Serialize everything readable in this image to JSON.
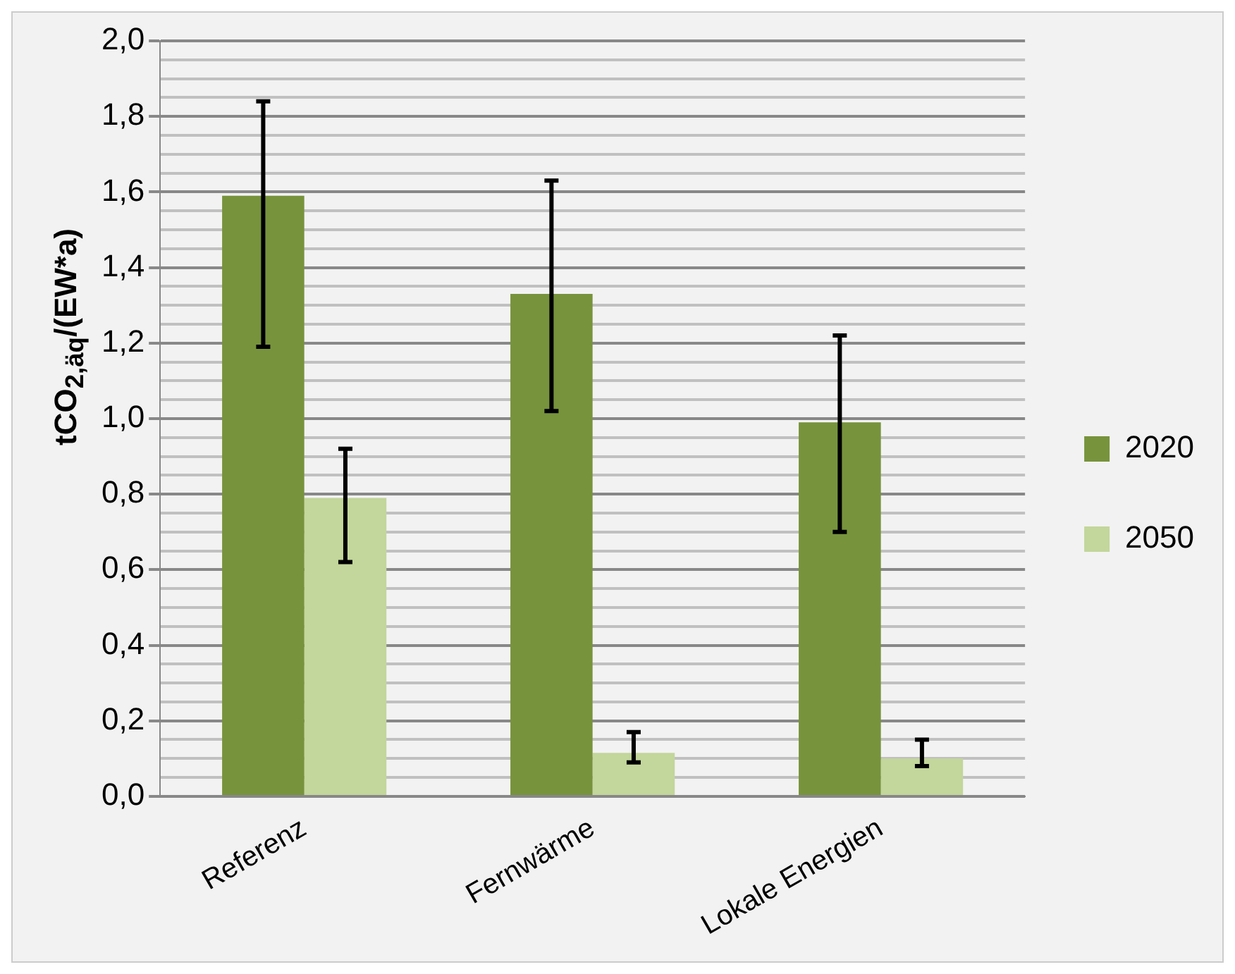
{
  "chart_data": {
    "type": "bar",
    "ylabel": "tCO$_{2,äq}$/(EW*a)",
    "categories": [
      "Referenz",
      "Fernwärme",
      "Lokale Energien"
    ],
    "series": [
      {
        "name": "2020",
        "color": "#77933c",
        "values": [
          1.59,
          1.33,
          0.99
        ],
        "errors": [
          [
            1.19,
            1.84
          ],
          [
            1.02,
            1.63
          ],
          [
            0.7,
            1.22
          ]
        ]
      },
      {
        "name": "2050",
        "color": "#c3d69b",
        "values": [
          0.79,
          0.115,
          0.1
        ],
        "errors": [
          [
            0.62,
            0.92
          ],
          [
            0.09,
            0.17
          ],
          [
            0.08,
            0.15
          ]
        ]
      }
    ],
    "ylim": [
      0,
      2
    ],
    "yticks": [
      {
        "value": 0,
        "label": "0,0"
      },
      {
        "value": 0.05,
        "label": null
      },
      {
        "value": 0.1,
        "label": null
      },
      {
        "value": 0.15,
        "label": null
      },
      {
        "value": 0.2,
        "label": "0,2"
      },
      {
        "value": 0.25,
        "label": null
      },
      {
        "value": 0.3,
        "label": null
      },
      {
        "value": 0.35,
        "label": null
      },
      {
        "value": 0.4,
        "label": "0,4"
      },
      {
        "value": 0.45,
        "label": null
      },
      {
        "value": 0.5,
        "label": null
      },
      {
        "value": 0.55,
        "label": null
      },
      {
        "value": 0.6,
        "label": "0,6"
      },
      {
        "value": 0.65,
        "label": null
      },
      {
        "value": 0.7,
        "label": null
      },
      {
        "value": 0.75,
        "label": null
      },
      {
        "value": 0.8,
        "label": "0,8"
      },
      {
        "value": 0.85,
        "label": null
      },
      {
        "value": 0.9,
        "label": null
      },
      {
        "value": 0.95,
        "label": null
      },
      {
        "value": 1.0,
        "label": "1,0"
      },
      {
        "value": 1.05,
        "label": null
      },
      {
        "value": 1.1,
        "label": null
      },
      {
        "value": 1.15,
        "label": null
      },
      {
        "value": 1.2,
        "label": "1,2"
      },
      {
        "value": 1.25,
        "label": null
      },
      {
        "value": 1.3,
        "label": null
      },
      {
        "value": 1.35,
        "label": null
      },
      {
        "value": 1.4,
        "label": "1,4"
      },
      {
        "value": 1.45,
        "label": null
      },
      {
        "value": 1.5,
        "label": null
      },
      {
        "value": 1.55,
        "label": null
      },
      {
        "value": 1.6,
        "label": "1,6"
      },
      {
        "value": 1.65,
        "label": null
      },
      {
        "value": 1.7,
        "label": null
      },
      {
        "value": 1.75,
        "label": null
      },
      {
        "value": 1.8,
        "label": "1,8"
      },
      {
        "value": 1.85,
        "label": null
      },
      {
        "value": 1.9,
        "label": null
      },
      {
        "value": 1.95,
        "label": null
      },
      {
        "value": 2.0,
        "label": "2,0"
      }
    ],
    "grid": "y",
    "legend": "right"
  }
}
